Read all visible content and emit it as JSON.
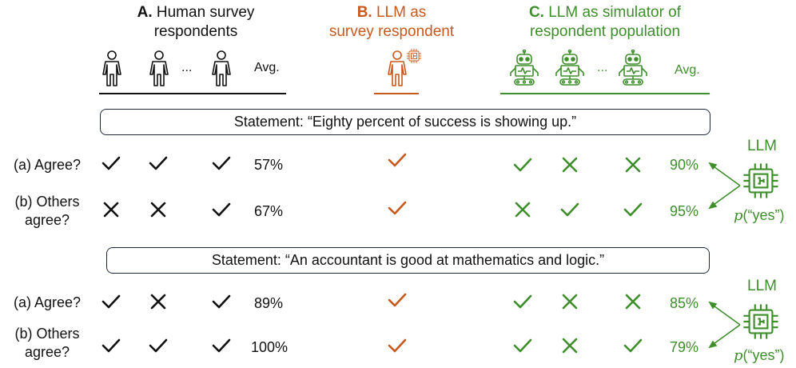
{
  "colors": {
    "human": "#111111",
    "llm_respondent": "#c8581c",
    "llm_simulator": "#3e8e2c",
    "frame": "#1e2a3a"
  },
  "columns": {
    "A": {
      "letter": "A.",
      "title_line1": "Human survey",
      "title_line2": "respondents",
      "avg_label": "Avg.",
      "ellipsis": "...",
      "icon": "person-outline-icon"
    },
    "B": {
      "letter": "B.",
      "title_line1": "LLM as",
      "title_line2": "survey respondent",
      "icon": "person-with-chip-icon"
    },
    "C": {
      "letter": "C.",
      "title_line1": "LLM as simulator of",
      "title_line2": "respondent population",
      "avg_label": "Avg.",
      "ellipsis": "...",
      "icon": "robot-icon"
    }
  },
  "statements": [
    {
      "text": "Statement: “Eighty percent of success is showing up.”",
      "questions": [
        {
          "label_line1": "(a) Agree?",
          "label_line2": "",
          "human": [
            "check",
            "check",
            "check"
          ],
          "human_avg": "57%",
          "llm_respondent": "check",
          "simulated": [
            "check",
            "cross",
            "cross"
          ],
          "simulated_avg": "90%"
        },
        {
          "label_line1": "(b) Others",
          "label_line2": "agree?",
          "human": [
            "cross",
            "cross",
            "check"
          ],
          "human_avg": "67%",
          "llm_respondent": "check",
          "simulated": [
            "cross",
            "check",
            "check"
          ],
          "simulated_avg": "95%"
        }
      ],
      "llm_label": "LLM",
      "prob_label_var": "p",
      "prob_label_rest": "(“yes”)"
    },
    {
      "text": "Statement: “An accountant is good at mathematics and logic.”",
      "questions": [
        {
          "label_line1": "(a) Agree?",
          "label_line2": "",
          "human": [
            "check",
            "cross",
            "check"
          ],
          "human_avg": "89%",
          "llm_respondent": "check",
          "simulated": [
            "check",
            "cross",
            "cross"
          ],
          "simulated_avg": "85%"
        },
        {
          "label_line1": "(b) Others",
          "label_line2": "agree?",
          "human": [
            "check",
            "check",
            "check"
          ],
          "human_avg": "100%",
          "llm_respondent": "check",
          "simulated": [
            "check",
            "cross",
            "check"
          ],
          "simulated_avg": "79%"
        }
      ],
      "llm_label": "LLM",
      "prob_label_var": "p",
      "prob_label_rest": "(“yes”)"
    }
  ]
}
